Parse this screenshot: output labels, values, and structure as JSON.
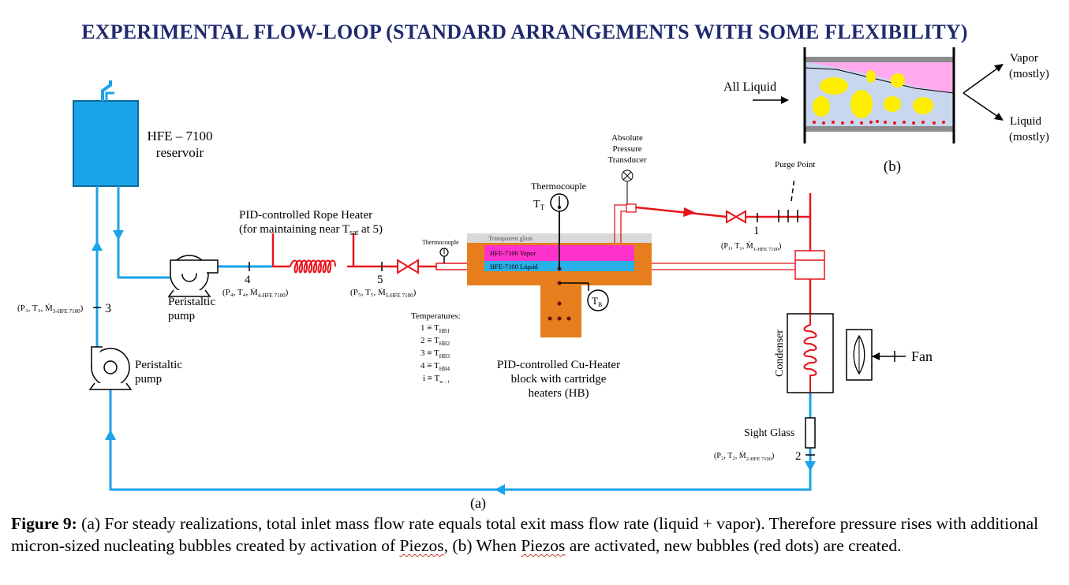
{
  "title": "EXPERIMENTAL FLOW-LOOP (STANDARD ARRANGEMENTS WITH SOME FLEXIBILITY)",
  "reservoir": {
    "line1": "HFE – 7100",
    "line2": "reservoir"
  },
  "pump_top": {
    "line1": "Peristaltic",
    "line2": "pump"
  },
  "pump_left": {
    "line1": "Peristaltic",
    "line2": "pump"
  },
  "rope_heater": {
    "line1": "PID-controlled Rope Heater",
    "line2": "(for maintaining near T",
    "line2_sub": "sat",
    "line2_tail": " at 5)"
  },
  "thermocouple_small": "Thermocouple",
  "thermocouple_top": "Thermocouple",
  "tt_label": "T",
  "tt_sub": "T",
  "tb_label": "T",
  "tb_sub": "B",
  "transparent_glass": "Transparent glass",
  "vapor_layer": "HFE-7100 Vapor",
  "liquid_layer": "HFE-7100 Liquid",
  "pressure_transducer": {
    "line1": "Absolute",
    "line2": "Pressure",
    "line3": "Transducer"
  },
  "purge_point": "Purge Point",
  "cu_heater": {
    "line1": "PID-controlled Cu-Heater",
    "line2": "block with cartridge",
    "line3": "heaters (HB)"
  },
  "temperatures": {
    "heading": "Temperatures:",
    "rows": [
      {
        "lhs": "1 ≡ T",
        "sub": "HB1"
      },
      {
        "lhs": "2 ≡ T",
        "sub": "HB2"
      },
      {
        "lhs": "3 ≡ T",
        "sub": "HB3"
      },
      {
        "lhs": "4 ≡ T",
        "sub": "HB4"
      },
      {
        "lhs": "i ≡ T",
        "sub": "w – i"
      }
    ]
  },
  "points": {
    "p1": {
      "num": "1",
      "label": "(P₁, T₁, Ṁ",
      "sub": "1-HFE 7100",
      "tail": ")"
    },
    "p2": {
      "num": "2",
      "label": "(P₂, T₂, Ṁ",
      "sub": "2-HFE 7100",
      "tail": ")"
    },
    "p3": {
      "num": "3",
      "label": "(P₃, T₃, Ṁ",
      "sub": "3-HFE 7100",
      "tail": ")"
    },
    "p4": {
      "num": "4",
      "label": "(P₄, T₄, Ṁ",
      "sub": "4-HFE 7100",
      "tail": ")"
    },
    "p5": {
      "num": "5",
      "label": "(P₅, T₅, Ṁ",
      "sub": "5-HFE 7100",
      "tail": ")"
    }
  },
  "condenser": "Condenser",
  "fan": "Fan",
  "sight_glass": "Sight Glass",
  "label_a": "(a)",
  "label_b": "(b)",
  "inset": {
    "inlet": "All Liquid",
    "out_vapor": {
      "line1": "Vapor",
      "line2": "(mostly)"
    },
    "out_liquid": {
      "line1": "Liquid",
      "line2": "(mostly)"
    }
  },
  "caption": {
    "label": "Figure 9:",
    "part1": " (a) For steady realizations, total inlet mass flow rate equals total exit mass flow rate (liquid + vapor). Therefore pressure rises with additional micron-sized nucleating bubbles created by activation of ",
    "piezos1": "Piezos",
    "part2": ",  (b) When ",
    "piezos2": "Piezos",
    "part3": " are activated, new bubbles (red dots) are created."
  },
  "colors": {
    "title": "#1f2a6e",
    "liquid_line": "#1aa3e8",
    "hot_line": "#e8141c",
    "heater_block": "#e67e1e",
    "vapor": "#ff33cc",
    "liquid_layer": "#2ab0e8",
    "reservoir": "#1aa3e8",
    "bubble": "#ffee00"
  }
}
